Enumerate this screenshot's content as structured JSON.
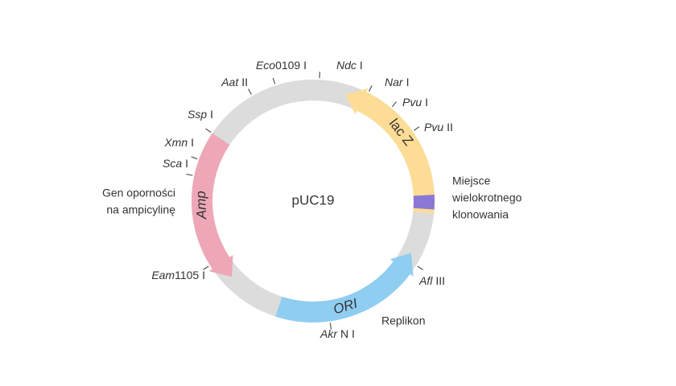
{
  "title": "pUC19",
  "features": [
    {
      "label": "lac Z"
    },
    {
      "label": "Amp"
    },
    {
      "label": "ORI"
    }
  ],
  "annotations": {
    "mcs": [
      "Miejsce",
      "wielokrotnego",
      "klonowania"
    ],
    "amp": [
      "Gen oporności",
      "na ampicylinę"
    ],
    "ori": [
      "Replikon"
    ]
  },
  "sites": [
    {
      "italic": "Ndc",
      "rest": "I"
    },
    {
      "italic": "Eco",
      "rest": "0109 I"
    },
    {
      "italic": "Aat",
      "rest": "II"
    },
    {
      "italic": "Ssp",
      "rest": "I"
    },
    {
      "italic": "Xmn",
      "rest": "I"
    },
    {
      "italic": "Sca",
      "rest": "I"
    },
    {
      "italic": "Eam",
      "rest": "1105 I"
    },
    {
      "italic": "Nar",
      "rest": "I"
    },
    {
      "italic": "Pvu",
      "rest": "I"
    },
    {
      "italic": "Pvu",
      "rest": "II"
    },
    {
      "italic": "Afl",
      "rest": "III"
    },
    {
      "italic": "Akr",
      "rest": "N I"
    }
  ]
}
